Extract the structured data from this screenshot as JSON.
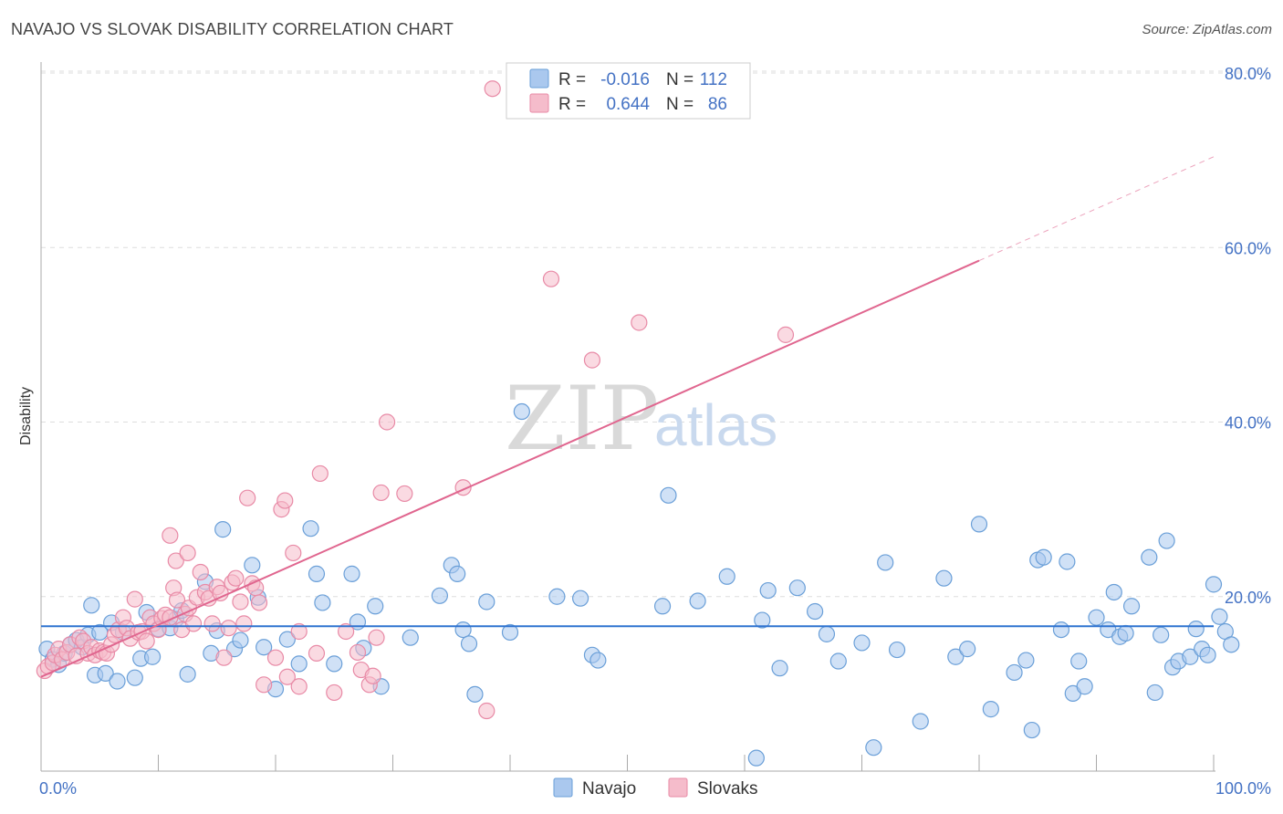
{
  "title": "NAVAJO VS SLOVAK DISABILITY CORRELATION CHART",
  "source": "Source: ZipAtlas.com",
  "watermark": {
    "part1": "ZIP",
    "part2": "atlas"
  },
  "legend_top": [
    {
      "r_label": "R =",
      "r_value": "-0.016",
      "n_label": "N =",
      "n_value": "112"
    },
    {
      "r_label": "R =",
      "r_value": "0.644",
      "n_label": "N =",
      "n_value": "86"
    }
  ],
  "legend_bottom": [
    "Navajo",
    "Slovaks"
  ],
  "colors": {
    "navajo_fill": "#aac8ee",
    "navajo_stroke": "#6a9fd8",
    "navajo_line": "#2f73d0",
    "slovak_fill": "#f5bccb",
    "slovak_stroke": "#e88aa6",
    "slovak_line": "#e0668f",
    "grid": "#dddddd",
    "tick_text": "#4472c4"
  },
  "chart_data": {
    "type": "scatter",
    "ylabel": "Disability",
    "xlim": [
      0,
      100
    ],
    "ylim": [
      0,
      80
    ],
    "x_tick_labels": [
      {
        "value": 0,
        "label": "0.0%"
      },
      {
        "value": 100,
        "label": "100.0%"
      }
    ],
    "y_tick_labels": [
      {
        "value": 20,
        "label": "20.0%"
      },
      {
        "value": 40,
        "label": "40.0%"
      },
      {
        "value": 60,
        "label": "60.0%"
      },
      {
        "value": 80,
        "label": "80.0%"
      }
    ],
    "grid": "horizontal dashed",
    "series": [
      {
        "name": "Navajo",
        "R": -0.016,
        "N": 112,
        "trend": {
          "x": [
            0,
            100
          ],
          "y": [
            16.6,
            16.6
          ]
        },
        "points": [
          [
            0.5,
            14.0
          ],
          [
            1.0,
            12.8
          ],
          [
            1.5,
            12.2
          ],
          [
            2.0,
            13.5
          ],
          [
            2.5,
            14.5
          ],
          [
            3.0,
            15.0
          ],
          [
            3.5,
            14.2
          ],
          [
            4.0,
            15.6
          ],
          [
            4.3,
            19.0
          ],
          [
            4.6,
            11.0
          ],
          [
            5.0,
            15.9
          ],
          [
            5.5,
            11.2
          ],
          [
            6.0,
            17.0
          ],
          [
            6.5,
            10.3
          ],
          [
            7.0,
            15.9
          ],
          [
            8.0,
            10.7
          ],
          [
            8.5,
            12.9
          ],
          [
            9.0,
            18.2
          ],
          [
            9.5,
            13.1
          ],
          [
            10.0,
            16.3
          ],
          [
            11.0,
            16.4
          ],
          [
            11.5,
            17.4
          ],
          [
            12.0,
            18.4
          ],
          [
            12.5,
            11.1
          ],
          [
            14.0,
            21.7
          ],
          [
            14.5,
            13.5
          ],
          [
            15.0,
            16.1
          ],
          [
            15.5,
            27.7
          ],
          [
            16.5,
            14.0
          ],
          [
            17.0,
            15.0
          ],
          [
            18.0,
            23.6
          ],
          [
            18.5,
            19.9
          ],
          [
            19.0,
            14.2
          ],
          [
            20.0,
            9.4
          ],
          [
            21.0,
            15.1
          ],
          [
            22.0,
            12.3
          ],
          [
            23.0,
            27.8
          ],
          [
            23.5,
            22.6
          ],
          [
            24.0,
            19.3
          ],
          [
            25.0,
            12.3
          ],
          [
            26.5,
            22.6
          ],
          [
            27.0,
            17.1
          ],
          [
            27.5,
            14.1
          ],
          [
            28.5,
            18.9
          ],
          [
            29.0,
            9.7
          ],
          [
            31.5,
            15.3
          ],
          [
            34.0,
            20.1
          ],
          [
            35.0,
            23.6
          ],
          [
            35.5,
            22.6
          ],
          [
            36.0,
            16.2
          ],
          [
            36.5,
            14.6
          ],
          [
            37.0,
            8.8
          ],
          [
            38.0,
            19.4
          ],
          [
            40.0,
            15.9
          ],
          [
            41.0,
            41.2
          ],
          [
            44.0,
            20.0
          ],
          [
            46.0,
            19.8
          ],
          [
            47.0,
            13.3
          ],
          [
            47.5,
            12.7
          ],
          [
            53.0,
            18.9
          ],
          [
            53.5,
            31.6
          ],
          [
            56.0,
            19.5
          ],
          [
            58.5,
            22.3
          ],
          [
            61.0,
            1.5
          ],
          [
            61.5,
            17.3
          ],
          [
            62.0,
            20.7
          ],
          [
            63.0,
            11.8
          ],
          [
            64.5,
            21.0
          ],
          [
            66.0,
            18.3
          ],
          [
            67.0,
            15.7
          ],
          [
            68.0,
            12.6
          ],
          [
            70.0,
            14.7
          ],
          [
            71.0,
            2.7
          ],
          [
            72.0,
            23.9
          ],
          [
            73.0,
            13.9
          ],
          [
            75.0,
            5.7
          ],
          [
            77.0,
            22.1
          ],
          [
            78.0,
            13.1
          ],
          [
            79.0,
            14.0
          ],
          [
            80.0,
            28.3
          ],
          [
            81.0,
            7.1
          ],
          [
            83.0,
            11.3
          ],
          [
            84.0,
            12.7
          ],
          [
            84.5,
            4.7
          ],
          [
            85.0,
            24.2
          ],
          [
            85.5,
            24.5
          ],
          [
            87.0,
            16.2
          ],
          [
            87.5,
            24.0
          ],
          [
            88.0,
            8.9
          ],
          [
            88.5,
            12.6
          ],
          [
            89.0,
            9.7
          ],
          [
            90.0,
            17.6
          ],
          [
            91.0,
            16.2
          ],
          [
            91.5,
            20.5
          ],
          [
            92.0,
            15.4
          ],
          [
            92.5,
            15.8
          ],
          [
            93.0,
            18.9
          ],
          [
            94.5,
            24.5
          ],
          [
            95.0,
            9.0
          ],
          [
            95.5,
            15.6
          ],
          [
            96.0,
            26.4
          ],
          [
            96.5,
            11.9
          ],
          [
            97.0,
            12.6
          ],
          [
            98.0,
            13.1
          ],
          [
            98.5,
            16.3
          ],
          [
            99.0,
            14.0
          ],
          [
            99.5,
            13.3
          ],
          [
            100.0,
            21.4
          ],
          [
            100.5,
            17.7
          ],
          [
            101.0,
            16.0
          ],
          [
            101.5,
            14.5
          ]
        ]
      },
      {
        "name": "Slovaks",
        "R": 0.644,
        "N": 86,
        "trend": {
          "x": [
            0,
            80
          ],
          "y": [
            10.8,
            58.5
          ]
        },
        "trend_dashed": {
          "x": [
            80,
            100
          ],
          "y": [
            58.5,
            70.4
          ]
        },
        "points": [
          [
            0.3,
            11.5
          ],
          [
            0.6,
            12.0
          ],
          [
            1.0,
            12.4
          ],
          [
            1.2,
            13.3
          ],
          [
            1.5,
            14.0
          ],
          [
            1.8,
            12.8
          ],
          [
            2.2,
            13.6
          ],
          [
            2.5,
            14.5
          ],
          [
            3.0,
            13.2
          ],
          [
            3.3,
            15.3
          ],
          [
            3.6,
            14.9
          ],
          [
            4.0,
            13.5
          ],
          [
            4.3,
            14.2
          ],
          [
            4.6,
            13.3
          ],
          [
            5.0,
            13.8
          ],
          [
            5.3,
            13.6
          ],
          [
            5.6,
            13.5
          ],
          [
            6.0,
            14.5
          ],
          [
            6.3,
            15.6
          ],
          [
            6.6,
            16.2
          ],
          [
            7.0,
            17.6
          ],
          [
            7.3,
            16.4
          ],
          [
            7.6,
            15.2
          ],
          [
            8.0,
            19.7
          ],
          [
            8.3,
            15.9
          ],
          [
            8.6,
            16.0
          ],
          [
            9.0,
            14.9
          ],
          [
            9.3,
            17.6
          ],
          [
            9.6,
            16.9
          ],
          [
            10.0,
            16.2
          ],
          [
            10.3,
            17.5
          ],
          [
            10.6,
            17.9
          ],
          [
            11.0,
            17.6
          ],
          [
            11.3,
            21.0
          ],
          [
            11.6,
            19.6
          ],
          [
            12.0,
            16.2
          ],
          [
            12.3,
            18.0
          ],
          [
            12.6,
            18.7
          ],
          [
            13.0,
            16.9
          ],
          [
            13.3,
            19.9
          ],
          [
            13.6,
            22.8
          ],
          [
            14.0,
            20.5
          ],
          [
            14.3,
            19.8
          ],
          [
            14.6,
            16.9
          ],
          [
            15.0,
            21.1
          ],
          [
            15.3,
            20.4
          ],
          [
            15.6,
            13.0
          ],
          [
            16.0,
            16.4
          ],
          [
            16.3,
            21.6
          ],
          [
            16.6,
            22.1
          ],
          [
            17.0,
            19.4
          ],
          [
            17.3,
            16.9
          ],
          [
            17.6,
            31.3
          ],
          [
            18.0,
            21.5
          ],
          [
            18.3,
            21.0
          ],
          [
            18.6,
            19.3
          ],
          [
            19.0,
            9.9
          ],
          [
            20.0,
            13.0
          ],
          [
            20.5,
            30.0
          ],
          [
            21.0,
            10.8
          ],
          [
            22.0,
            9.7
          ],
          [
            21.5,
            25.0
          ],
          [
            11.0,
            27.0
          ],
          [
            11.5,
            24.1
          ],
          [
            12.5,
            25.0
          ],
          [
            20.8,
            31.0
          ],
          [
            22.0,
            16.0
          ],
          [
            23.5,
            13.5
          ],
          [
            23.8,
            34.1
          ],
          [
            25.0,
            9.0
          ],
          [
            26.0,
            16.0
          ],
          [
            27.0,
            13.6
          ],
          [
            27.3,
            11.6
          ],
          [
            28.0,
            9.9
          ],
          [
            28.3,
            10.9
          ],
          [
            28.6,
            15.3
          ],
          [
            29.0,
            31.9
          ],
          [
            29.5,
            40.0
          ],
          [
            31.0,
            31.8
          ],
          [
            36.0,
            32.5
          ],
          [
            38.0,
            6.9
          ],
          [
            38.5,
            78.2
          ],
          [
            43.5,
            56.4
          ],
          [
            47.0,
            47.1
          ],
          [
            51.0,
            51.4
          ],
          [
            63.5,
            50.0
          ]
        ]
      }
    ]
  }
}
